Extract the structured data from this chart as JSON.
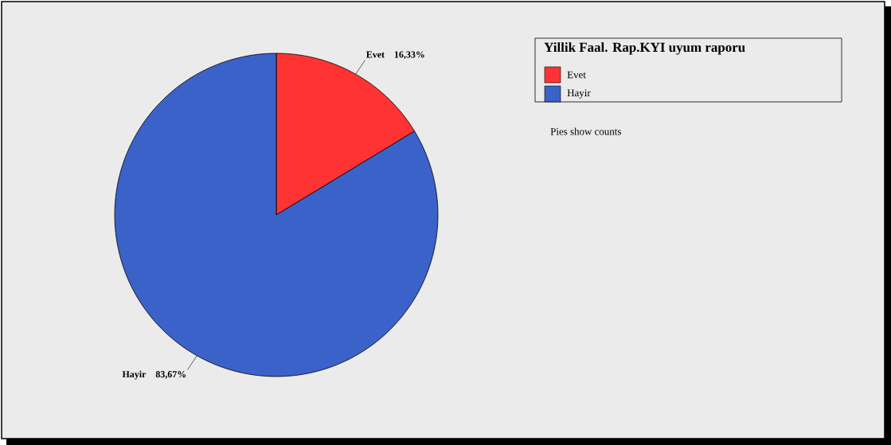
{
  "chart_data": {
    "type": "pie",
    "legend_title": "Yillik Faal. Rap.KYI uyum raporu",
    "categories": [
      "Evet",
      "Hayir"
    ],
    "values": [
      16.33,
      83.67
    ],
    "value_labels": [
      "16,33%",
      "83,67%"
    ],
    "colors": [
      "#ff3333",
      "#3a62c8"
    ],
    "legend": "top right",
    "annotations": [
      "Pies show counts"
    ]
  }
}
